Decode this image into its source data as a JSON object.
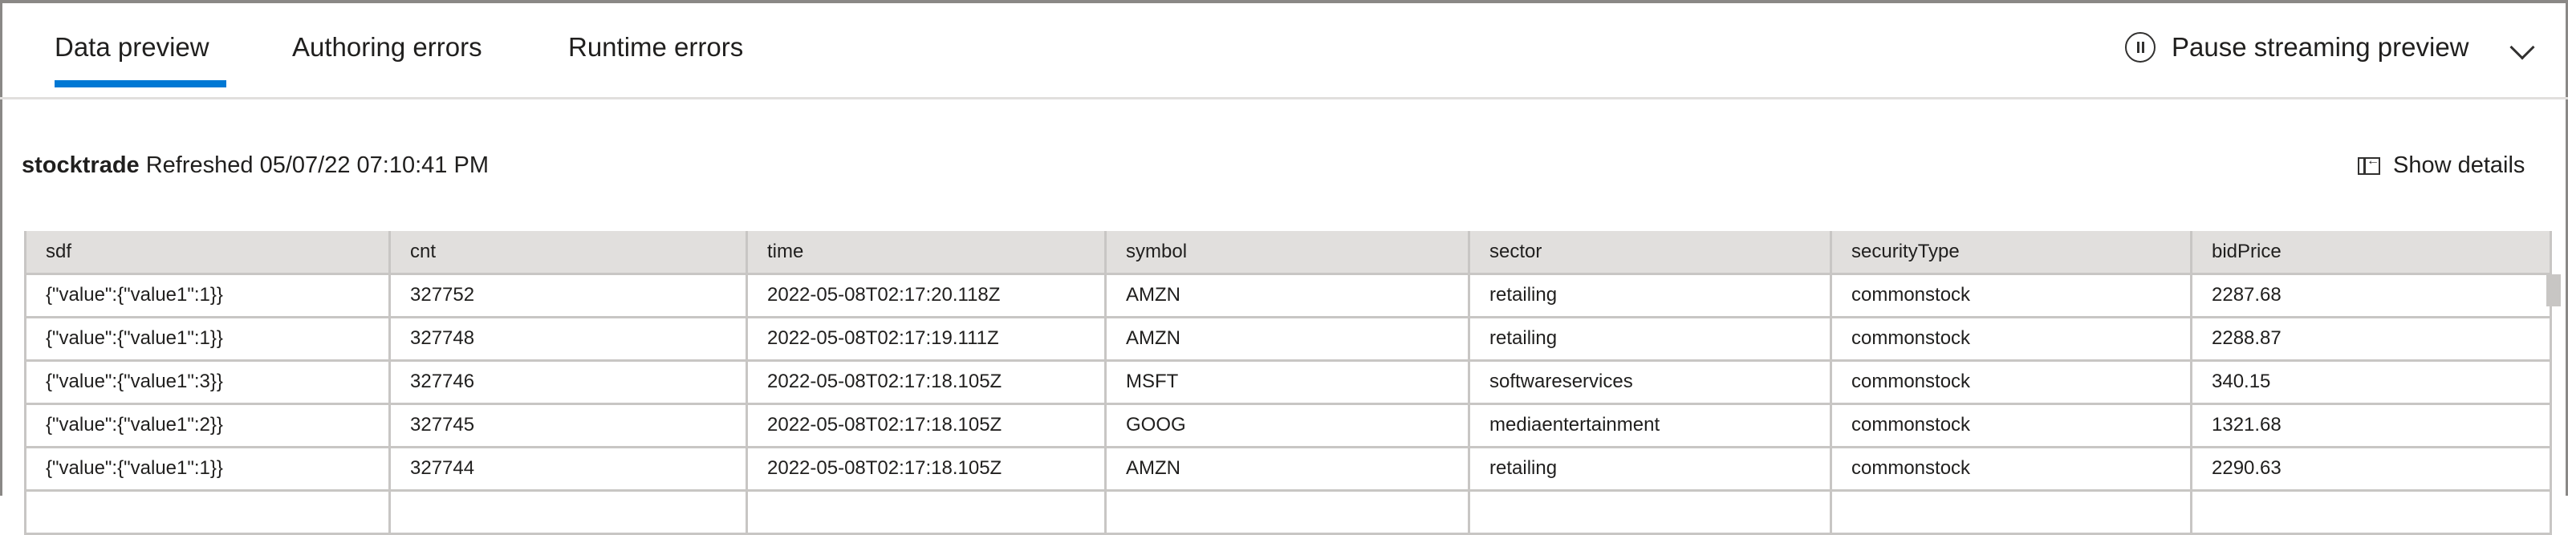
{
  "tabs": [
    {
      "label": "Data preview",
      "active": true
    },
    {
      "label": "Authoring errors"
    },
    {
      "label": "Runtime errors"
    }
  ],
  "accent": "#0078d4",
  "pause_label": "Pause streaming preview",
  "header": {
    "name": "stocktrade",
    "refreshed": "Refreshed 05/07/22 07:10:41 PM"
  },
  "show_details": "Show details",
  "table": {
    "columns": [
      "sdf",
      "cnt",
      "time",
      "symbol",
      "sector",
      "securityType",
      "bidPrice"
    ],
    "rows": [
      [
        "{\"value\":{\"value1\":1}}",
        "327752",
        "2022-05-08T02:17:20.118Z",
        "AMZN",
        "retailing",
        "commonstock",
        "2287.68"
      ],
      [
        "{\"value\":{\"value1\":1}}",
        "327748",
        "2022-05-08T02:17:19.111Z",
        "AMZN",
        "retailing",
        "commonstock",
        "2288.87"
      ],
      [
        "{\"value\":{\"value1\":3}}",
        "327746",
        "2022-05-08T02:17:18.105Z",
        "MSFT",
        "softwareservices",
        "commonstock",
        "340.15"
      ],
      [
        "{\"value\":{\"value1\":2}}",
        "327745",
        "2022-05-08T02:17:18.105Z",
        "GOOG",
        "mediaentertainment",
        "commonstock",
        "1321.68"
      ],
      [
        "{\"value\":{\"value1\":1}}",
        "327744",
        "2022-05-08T02:17:18.105Z",
        "AMZN",
        "retailing",
        "commonstock",
        "2290.63"
      ],
      [
        "",
        "",
        "",
        "",
        "",
        "",
        ""
      ]
    ]
  }
}
